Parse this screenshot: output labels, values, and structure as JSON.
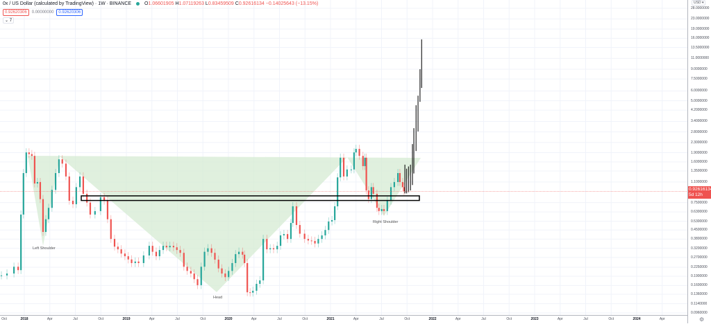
{
  "header": {
    "title": "0x / US Dollar (calculated by TradingView) · 1W · BINANCE",
    "status_color": "#26a69a",
    "ohlc": {
      "o_label": "O",
      "o": "1.06601905",
      "h_label": "H",
      "h": "1.07119263",
      "l_label": "L",
      "l": "0.83459509",
      "c_label": "C",
      "c": "0.92616134",
      "change": "−0.14025643 (−13.15%)"
    },
    "bid": "0.92620306",
    "spread": "0.00000000",
    "ask": "0.92620306",
    "indicators_toggle": "⌄ 7"
  },
  "price_axis": {
    "currency": "USD ▾",
    "labels": [
      "28.0000000",
      "23.0000000",
      "19.0000000",
      "16.0000000",
      "13.5000000",
      "11.0000000",
      "9.0000000",
      "7.5000000",
      "6.0000000",
      "5.0000000",
      "4.2000000",
      "3.4000000",
      "2.8000000",
      "2.3000000",
      "1.9000000",
      "1.6000000",
      "1.3500000",
      "1.1000000",
      "0.7500000",
      "0.6300000",
      "0.5300000",
      "0.4500000",
      "0.3800000",
      "0.3200000",
      "0.2700000",
      "0.2250000",
      "0.1900000",
      "0.1600000",
      "0.1360000",
      "0.1140000",
      "0.0960000"
    ],
    "current_price": "0.92616134",
    "countdown": "5d 12h"
  },
  "time_axis": {
    "labels": [
      "Oct",
      "2018",
      "Apr",
      "Jul",
      "Oct",
      "2019",
      "Apr",
      "Jul",
      "Oct",
      "2020",
      "Apr",
      "Jul",
      "Oct",
      "2021",
      "Apr",
      "Jul",
      "Oct",
      "2022",
      "Apr",
      "Jul",
      "Oct",
      "2023",
      "Apr",
      "Jul",
      "Oct",
      "2024",
      "Apr"
    ]
  },
  "annotations": {
    "left_shoulder": "Left Shoulder",
    "head": "Head",
    "right_shoulder": "Right Shoulder"
  },
  "colors": {
    "up": "#26a69a",
    "down": "#ef5350",
    "pattern_fill": "#d6ebd3",
    "projection": "#000000"
  },
  "chart_data": {
    "type": "candlestick",
    "scale": "log",
    "interval": "1W",
    "ylim": [
      0.096,
      28
    ],
    "xlim": [
      "2017-10-01",
      "2024-05-15"
    ],
    "grid": true,
    "weekly_closes_approx": [
      [
        "2017-10-11",
        0.193
      ],
      [
        "2017-10-31",
        0.2
      ],
      [
        "2017-11-25",
        0.227
      ],
      [
        "2017-12-10",
        0.213
      ],
      [
        "2017-12-20",
        0.6
      ],
      [
        "2017-12-29",
        1.3
      ],
      [
        "2018-01-08",
        1.91
      ],
      [
        "2018-01-18",
        1.85
      ],
      [
        "2018-01-28",
        1.79
      ],
      [
        "2018-02-07",
        1.07
      ],
      [
        "2018-02-17",
        1.1
      ],
      [
        "2018-02-27",
        0.8
      ],
      [
        "2018-03-09",
        0.434
      ],
      [
        "2018-03-19",
        0.55
      ],
      [
        "2018-03-29",
        0.68
      ],
      [
        "2018-04-10",
        0.95
      ],
      [
        "2018-04-23",
        1.3
      ],
      [
        "2018-05-05",
        1.68
      ],
      [
        "2018-05-17",
        1.55
      ],
      [
        "2018-05-30",
        1.22
      ],
      [
        "2018-06-11",
        0.776
      ],
      [
        "2018-06-24",
        0.728
      ],
      [
        "2018-07-06",
        1.0
      ],
      [
        "2018-07-19",
        1.22
      ],
      [
        "2018-07-31",
        0.883
      ],
      [
        "2018-08-13",
        0.75
      ],
      [
        "2018-08-25",
        0.6
      ],
      [
        "2018-09-11",
        0.64
      ],
      [
        "2018-10-01",
        0.83
      ],
      [
        "2018-10-14",
        0.776
      ],
      [
        "2018-10-26",
        0.55
      ],
      [
        "2018-11-07",
        0.381
      ],
      [
        "2018-11-20",
        0.33
      ],
      [
        "2018-12-02",
        0.314
      ],
      [
        "2018-12-14",
        0.29
      ],
      [
        "2018-12-27",
        0.276
      ],
      [
        "2019-01-08",
        0.26
      ],
      [
        "2019-01-20",
        0.243
      ],
      [
        "2019-02-02",
        0.25
      ],
      [
        "2019-02-14",
        0.243
      ],
      [
        "2019-03-04",
        0.28
      ],
      [
        "2019-03-24",
        0.335
      ],
      [
        "2019-04-05",
        0.3
      ],
      [
        "2019-04-18",
        0.276
      ],
      [
        "2019-04-30",
        0.31
      ],
      [
        "2019-05-13",
        0.335
      ],
      [
        "2019-05-25",
        0.326
      ],
      [
        "2019-06-06",
        0.335
      ],
      [
        "2019-06-19",
        0.326
      ],
      [
        "2019-07-01",
        0.31
      ],
      [
        "2019-07-13",
        0.294
      ],
      [
        "2019-07-26",
        0.227
      ],
      [
        "2019-08-07",
        0.21
      ],
      [
        "2019-08-20",
        0.2
      ],
      [
        "2019-09-01",
        0.18
      ],
      [
        "2019-09-13",
        0.161
      ],
      [
        "2019-09-26",
        0.227
      ],
      [
        "2019-10-08",
        0.3
      ],
      [
        "2019-10-20",
        0.32
      ],
      [
        "2019-11-02",
        0.294
      ],
      [
        "2019-11-14",
        0.259
      ],
      [
        "2019-11-27",
        0.22
      ],
      [
        "2019-12-09",
        0.2
      ],
      [
        "2019-12-21",
        0.187
      ],
      [
        "2020-01-02",
        0.21
      ],
      [
        "2020-01-15",
        0.243
      ],
      [
        "2020-01-27",
        0.287
      ],
      [
        "2020-02-08",
        0.3
      ],
      [
        "2020-02-21",
        0.284
      ],
      [
        "2020-02-28",
        0.243
      ],
      [
        "2020-03-09",
        0.141
      ],
      [
        "2020-03-19",
        0.14
      ],
      [
        "2020-03-29",
        0.145
      ],
      [
        "2020-04-11",
        0.165
      ],
      [
        "2020-04-23",
        0.176
      ],
      [
        "2020-05-05",
        0.381
      ],
      [
        "2020-05-18",
        0.314
      ],
      [
        "2020-05-30",
        0.32
      ],
      [
        "2020-06-11",
        0.314
      ],
      [
        "2020-06-24",
        0.335
      ],
      [
        "2020-07-06",
        0.407
      ],
      [
        "2020-07-18",
        0.417
      ],
      [
        "2020-07-31",
        0.381
      ],
      [
        "2020-08-12",
        0.513
      ],
      [
        "2020-08-19",
        0.7
      ],
      [
        "2020-09-01",
        0.494
      ],
      [
        "2020-09-13",
        0.42
      ],
      [
        "2020-09-30",
        0.381
      ],
      [
        "2020-10-13",
        0.37
      ],
      [
        "2020-10-25",
        0.367
      ],
      [
        "2020-11-06",
        0.35
      ],
      [
        "2020-11-18",
        0.381
      ],
      [
        "2020-12-01",
        0.407
      ],
      [
        "2020-12-13",
        0.45
      ],
      [
        "2020-12-25",
        0.527
      ],
      [
        "2021-01-06",
        0.541
      ],
      [
        "2021-01-16",
        0.7
      ],
      [
        "2021-01-26",
        1.2
      ],
      [
        "2021-02-05",
        1.73
      ],
      [
        "2021-02-17",
        1.22
      ],
      [
        "2021-03-01",
        1.39
      ],
      [
        "2021-03-16",
        1.39
      ],
      [
        "2021-03-26",
        1.91
      ],
      [
        "2021-04-02",
        2.04
      ],
      [
        "2021-04-14",
        1.79
      ],
      [
        "2021-04-27",
        1.48
      ],
      [
        "2021-05-04",
        1.73
      ],
      [
        "2021-05-09",
        0.94
      ],
      [
        "2021-05-17",
        0.8
      ],
      [
        "2021-05-27",
        1.0
      ],
      [
        "2021-06-03",
        0.883
      ],
      [
        "2021-06-16",
        0.68
      ],
      [
        "2021-06-23",
        0.64
      ],
      [
        "2021-07-03",
        0.665
      ],
      [
        "2021-07-11",
        0.64
      ],
      [
        "2021-07-23",
        0.776
      ],
      [
        "2021-08-05",
        1.0
      ],
      [
        "2021-08-17",
        1.1
      ],
      [
        "2021-08-30",
        1.3
      ],
      [
        "2021-09-06",
        1.1
      ],
      [
        "2021-09-16",
        1.0
      ],
      [
        "2021-09-21",
        0.926
      ]
    ],
    "projection_bars_low_high": [
      [
        "2021-09-24",
        0.89,
        1.52
      ],
      [
        "2021-09-30",
        0.89,
        1.41
      ],
      [
        "2021-10-07",
        0.91,
        1.47
      ],
      [
        "2021-10-14",
        0.94,
        1.52
      ],
      [
        "2021-10-21",
        1.04,
        2.23
      ],
      [
        "2021-10-26",
        1.29,
        3.0
      ],
      [
        "2021-11-03",
        1.96,
        4.6
      ],
      [
        "2021-11-10",
        2.82,
        5.5
      ],
      [
        "2021-11-17",
        4.9,
        9.0
      ],
      [
        "2021-11-23",
        6.35,
        15.7
      ]
    ],
    "support_zone": [
      0.78,
      0.85
    ]
  }
}
